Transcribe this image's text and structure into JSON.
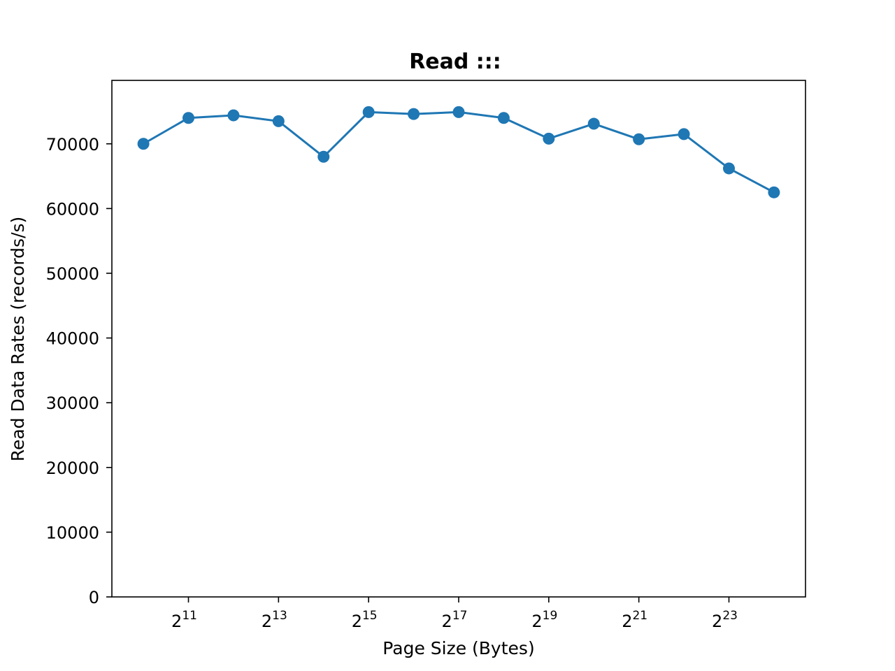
{
  "chart_data": {
    "type": "line",
    "title": "Read :::",
    "xlabel": "Page Size (Bytes)",
    "ylabel": "Read Data Rates (records/s)",
    "x_scale": "log2",
    "x_exponents": [
      10,
      11,
      12,
      13,
      14,
      15,
      16,
      17,
      18,
      19,
      20,
      21,
      22,
      23,
      24
    ],
    "series": [
      {
        "name": "Read",
        "color": "#1f77b4",
        "values": [
          70000,
          74000,
          74400,
          73500,
          68000,
          74900,
          74600,
          74900,
          74000,
          70800,
          73100,
          70700,
          71500,
          66200,
          62500
        ]
      }
    ],
    "x_tick_exponents": [
      11,
      13,
      15,
      17,
      19,
      21,
      23
    ],
    "x_tick_base": "2",
    "y_ticks": [
      0,
      10000,
      20000,
      30000,
      40000,
      50000,
      60000,
      70000
    ],
    "ylim": [
      0,
      79800
    ],
    "xlim_exponents": [
      9.3,
      24.7
    ]
  }
}
